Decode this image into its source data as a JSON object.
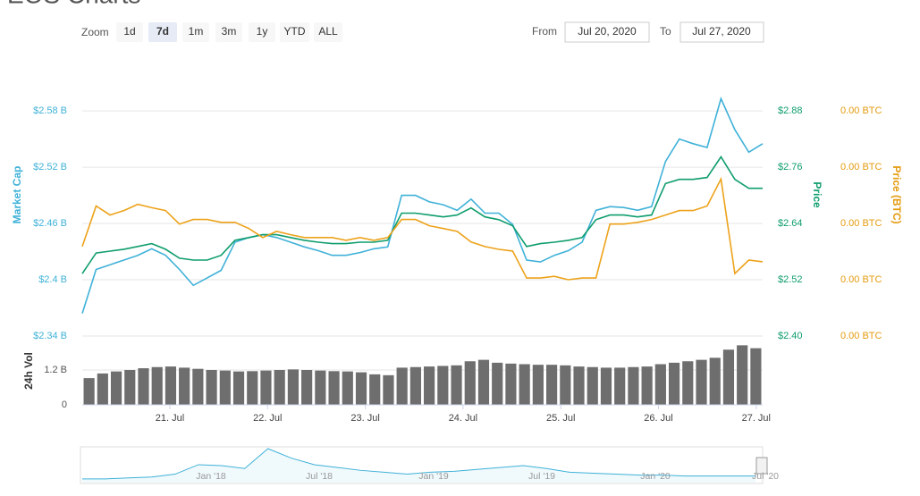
{
  "title": "EOS Charts",
  "toolbar": {
    "zoom_label": "Zoom",
    "buttons": [
      "1d",
      "7d",
      "1m",
      "3m",
      "1y",
      "YTD",
      "ALL"
    ],
    "selected": 1,
    "from_label": "From",
    "from": "Jul 20, 2020",
    "to_label": "To",
    "to": "Jul 27, 2020"
  },
  "chart_data": {
    "type": "line",
    "grid": true,
    "xticks": [
      "21. Jul",
      "22. Jul",
      "23. Jul",
      "24. Jul",
      "25. Jul",
      "26. Jul",
      "27. Jul"
    ],
    "ylim": [
      2.34,
      2.61
    ],
    "yticks": [
      {
        "value": 2.34,
        "label": "$2.34 B"
      },
      {
        "value": 2.4,
        "label": "$2.4 B"
      },
      {
        "value": 2.46,
        "label": "$2.46 B"
      },
      {
        "value": 2.52,
        "label": "$2.52 B"
      },
      {
        "value": 2.58,
        "label": "$2.58 B"
      }
    ],
    "y2lim": [
      2.4,
      2.94
    ],
    "y2ticks": [
      {
        "value": 2.4,
        "label": "$2.40"
      },
      {
        "value": 2.52,
        "label": "$2.52"
      },
      {
        "value": 2.64,
        "label": "$2.64"
      },
      {
        "value": 2.76,
        "label": "$2.76"
      },
      {
        "value": 2.88,
        "label": "$2.88"
      }
    ],
    "y3lim": [
      0.000235,
      0.00028
    ],
    "y3ticks": [
      {
        "value": 0.000235,
        "label": "0.00 BTC"
      },
      {
        "value": 0.000245,
        "label": "0.00 BTC"
      },
      {
        "value": 0.000255,
        "label": "0.00 BTC"
      },
      {
        "value": 0.000265,
        "label": "0.00 BTC"
      },
      {
        "value": 0.000275,
        "label": "0.00 BTC"
      }
    ],
    "series": [
      {
        "name": "Market Cap",
        "color": "#3fb1d8",
        "axis": "y",
        "values": [
          2.364,
          2.411,
          2.416,
          2.421,
          2.426,
          2.433,
          2.426,
          2.411,
          2.394,
          2.402,
          2.41,
          2.44,
          2.445,
          2.448,
          2.445,
          2.44,
          2.435,
          2.431,
          2.426,
          2.426,
          2.429,
          2.433,
          2.435,
          2.49,
          2.49,
          2.483,
          2.48,
          2.474,
          2.486,
          2.471,
          2.471,
          2.459,
          2.421,
          2.419,
          2.426,
          2.431,
          2.44,
          2.474,
          2.478,
          2.477,
          2.474,
          2.478,
          2.526,
          2.55,
          2.545,
          2.541,
          2.593,
          2.56,
          2.536,
          2.545
        ]
      },
      {
        "name": "Price",
        "color": "#0f9d6e",
        "axis": "y2",
        "values": [
          2.533,
          2.577,
          2.581,
          2.585,
          2.591,
          2.597,
          2.585,
          2.566,
          2.562,
          2.562,
          2.572,
          2.604,
          2.61,
          2.616,
          2.616,
          2.61,
          2.604,
          2.6,
          2.597,
          2.597,
          2.6,
          2.6,
          2.604,
          2.662,
          2.662,
          2.658,
          2.654,
          2.658,
          2.673,
          2.654,
          2.648,
          2.635,
          2.591,
          2.597,
          2.6,
          2.604,
          2.61,
          2.648,
          2.658,
          2.658,
          2.654,
          2.658,
          2.725,
          2.734,
          2.734,
          2.738,
          2.782,
          2.734,
          2.715,
          2.715
        ]
      },
      {
        "name": "Price (BTC)",
        "color": "#eda21a",
        "axis": "y3",
        "values": [
          0.0002509,
          0.0002581,
          0.0002565,
          0.0002573,
          0.0002584,
          0.0002578,
          0.0002573,
          0.0002549,
          0.0002557,
          0.0002557,
          0.0002552,
          0.0002552,
          0.0002541,
          0.0002525,
          0.0002536,
          0.000253,
          0.0002525,
          0.0002525,
          0.0002525,
          0.000252,
          0.0002525,
          0.000252,
          0.0002525,
          0.0002557,
          0.0002557,
          0.0002546,
          0.0002541,
          0.0002536,
          0.0002517,
          0.0002509,
          0.0002504,
          0.0002501,
          0.0002453,
          0.0002453,
          0.0002456,
          0.000245,
          0.0002453,
          0.0002453,
          0.0002549,
          0.0002549,
          0.0002552,
          0.0002557,
          0.0002565,
          0.0002573,
          0.0002573,
          0.0002581,
          0.0002629,
          0.0002461,
          0.0002485,
          0.0002482
        ]
      }
    ],
    "volume": {
      "name": "24h Vol",
      "color": "#6e6e6e",
      "ylim": [
        0,
        2.4
      ],
      "yticks": [
        0,
        {
          "value": 1.2,
          "label": "1.2 B"
        }
      ],
      "values": [
        0.92,
        1.08,
        1.15,
        1.2,
        1.26,
        1.3,
        1.32,
        1.28,
        1.24,
        1.2,
        1.18,
        1.15,
        1.16,
        1.18,
        1.2,
        1.22,
        1.2,
        1.18,
        1.16,
        1.15,
        1.12,
        1.05,
        1.02,
        1.28,
        1.3,
        1.32,
        1.34,
        1.36,
        1.5,
        1.55,
        1.45,
        1.42,
        1.4,
        1.38,
        1.38,
        1.36,
        1.32,
        1.3,
        1.28,
        1.28,
        1.3,
        1.32,
        1.4,
        1.45,
        1.5,
        1.55,
        1.62,
        1.9,
        2.05,
        1.95
      ]
    },
    "navigator": {
      "color": "#3fb1d8",
      "xticks": [
        "Jan '18",
        "Jul '18",
        "Jan '19",
        "Jul '19",
        "Jan '20",
        "Jul '20"
      ],
      "values": [
        3,
        3,
        4,
        5,
        8,
        18,
        17,
        14,
        35,
        25,
        18,
        15,
        12,
        10,
        8,
        10,
        11,
        13,
        15,
        17,
        14,
        10,
        9,
        8,
        7,
        7,
        6,
        6,
        6,
        6
      ]
    }
  }
}
